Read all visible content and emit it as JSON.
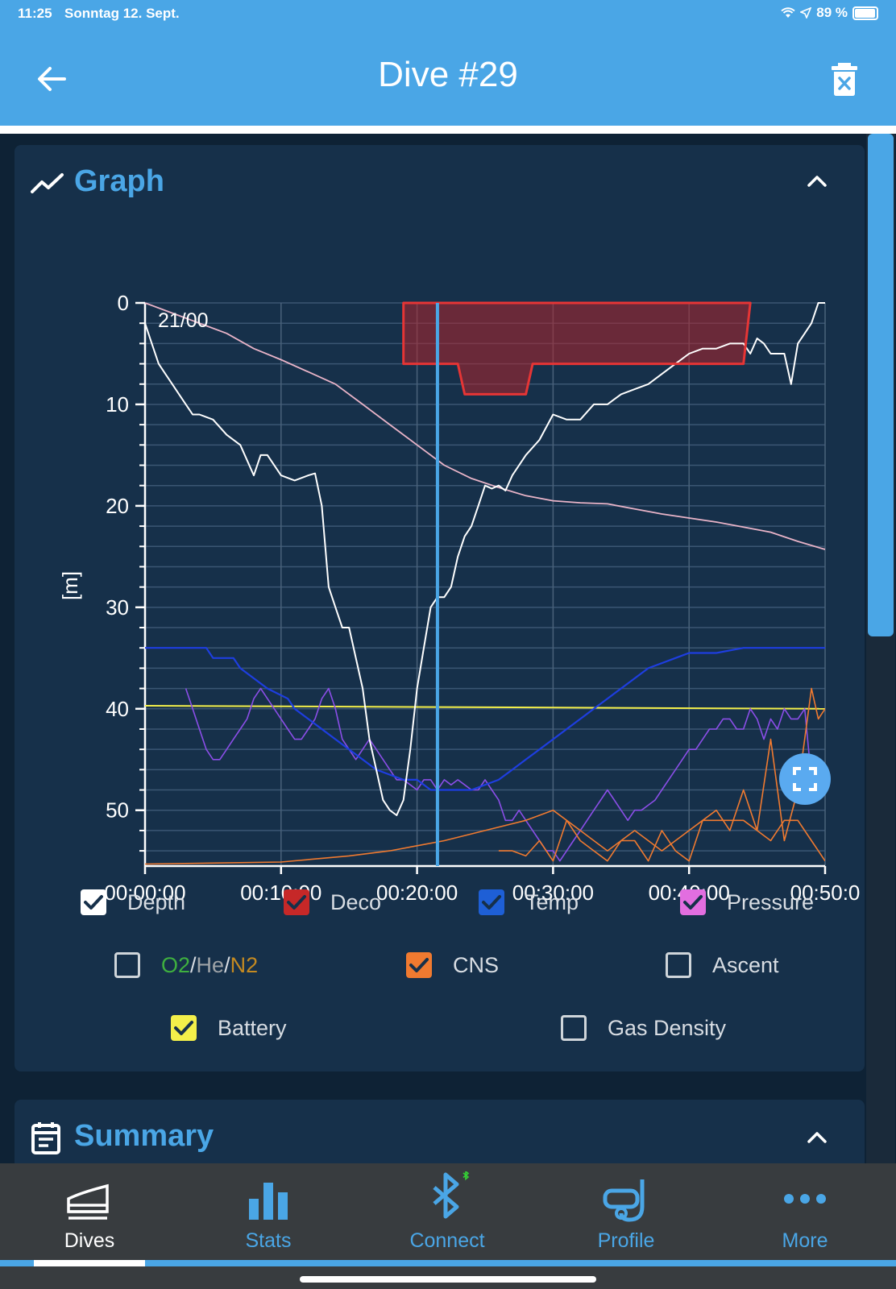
{
  "status_bar": {
    "time": "11:25",
    "date": "Sonntag 12. Sept.",
    "battery": "89 %",
    "battery_level": 0.89
  },
  "header": {
    "title": "Dive #29"
  },
  "graph_card": {
    "title": "Graph"
  },
  "summary_card": {
    "title": "Summary"
  },
  "legend": [
    {
      "label": "Depth",
      "checked": true,
      "color": "#ffffff"
    },
    {
      "label": "Deco",
      "checked": true,
      "color": "#c62828"
    },
    {
      "label": "Temp",
      "checked": true,
      "color": "#1e5fd6"
    },
    {
      "label": "Pressure",
      "checked": true,
      "color": "#e26ee0"
    },
    {
      "label": "O2/He/N2",
      "checked": false,
      "parts": [
        {
          "t": "O2",
          "c": "#3fb03f"
        },
        {
          "t": "/",
          "c": "#d8dde3"
        },
        {
          "t": "He",
          "c": "#9ea3a7"
        },
        {
          "t": "/",
          "c": "#d8dde3"
        },
        {
          "t": "N2",
          "c": "#c48a21"
        }
      ]
    },
    {
      "label": "CNS",
      "checked": true,
      "color": "#f07a30"
    },
    {
      "label": "Ascent",
      "checked": false
    },
    {
      "label": "Battery",
      "checked": true,
      "color": "#f3ef4a"
    },
    {
      "label": "Gas Density",
      "checked": false
    }
  ],
  "tabs": [
    {
      "label": "Dives",
      "icon": "dives-icon",
      "active": true
    },
    {
      "label": "Stats",
      "icon": "stats-icon",
      "active": false
    },
    {
      "label": "Connect",
      "icon": "bluetooth-icon",
      "active": false
    },
    {
      "label": "Profile",
      "icon": "mask-icon",
      "active": false
    },
    {
      "label": "More",
      "icon": "more-icon",
      "active": false
    }
  ],
  "chart_data": {
    "type": "line",
    "ylabel": "[m]",
    "yticks": [
      "0",
      "10",
      "20",
      "30",
      "40",
      "50"
    ],
    "xticks": [
      "00:00:00",
      "00:10:00",
      "00:20:00",
      "00:30:00",
      "00:40:00",
      "00:50:0"
    ],
    "x_unit": "minutes",
    "xlim": [
      0,
      50
    ],
    "ylim": [
      0,
      55.5
    ],
    "annotation": "21/00",
    "cursor_time_min": 21.5,
    "series": [
      {
        "name": "Depth",
        "color": "#ffffff",
        "x": [
          0,
          0.5,
          1,
          1.5,
          2,
          2.5,
          3,
          3.5,
          4,
          5,
          6,
          7,
          8,
          8.5,
          9,
          10,
          11,
          12,
          12.5,
          13,
          13.5,
          14,
          14.5,
          15,
          16,
          16.5,
          17,
          17.5,
          18,
          18.5,
          19,
          19.5,
          20,
          20.5,
          21,
          21.5,
          22,
          22.5,
          23,
          23.5,
          24,
          24.5,
          25,
          25.5,
          26,
          26.5,
          27,
          28,
          29,
          30,
          31,
          32,
          33,
          34,
          35,
          36,
          37,
          38,
          39,
          40,
          41,
          42,
          43,
          44,
          44.5,
          45,
          45.5,
          46,
          47,
          47.5,
          48,
          48.5,
          49,
          49.5,
          50
        ],
        "y": [
          2,
          4,
          6,
          7,
          8,
          9,
          10,
          11,
          11,
          11.5,
          13,
          14,
          17,
          15,
          15,
          17,
          17.5,
          17,
          16.8,
          20,
          28,
          30,
          32,
          32,
          38,
          43,
          46,
          49,
          50,
          50.5,
          49,
          44,
          38,
          34,
          30,
          29,
          29,
          28,
          25,
          23,
          22,
          20,
          18,
          18.3,
          18,
          18.5,
          17,
          15,
          13.5,
          11,
          11.5,
          11.5,
          10,
          10,
          9,
          8.5,
          8,
          7,
          6,
          5,
          4.5,
          4.5,
          4,
          4,
          5,
          3.5,
          4,
          5,
          5,
          8,
          4,
          3,
          2,
          0,
          0
        ]
      },
      {
        "name": "Pressure",
        "color": "#e9b4c8",
        "x": [
          0,
          2,
          4,
          6,
          8,
          10,
          12,
          14,
          16,
          18,
          20,
          22,
          24,
          26,
          28,
          30,
          32,
          34,
          36,
          38,
          40,
          42,
          44,
          46,
          48,
          50
        ],
        "y": [
          0,
          1,
          2,
          3,
          4.5,
          5.6,
          6.8,
          8,
          10,
          12,
          14,
          16,
          17.3,
          18.2,
          19,
          19.5,
          19.7,
          19.8,
          20.3,
          20.8,
          21.2,
          21.6,
          22.1,
          22.6,
          23.5,
          24.3
        ]
      },
      {
        "name": "Deco",
        "color": "#e53535",
        "x": [
          19,
          22,
          23,
          23.5,
          28,
          28.5,
          44,
          44.5
        ],
        "y": [
          6,
          6,
          6,
          9,
          9,
          6,
          6,
          0
        ]
      },
      {
        "name": "Temp",
        "color": "#1e3ee0",
        "x": [
          0,
          3,
          4.5,
          5,
          6.5,
          7,
          8,
          9,
          10.5,
          11,
          12,
          13,
          14,
          15,
          16,
          17,
          19,
          20,
          21,
          23,
          24,
          26,
          27,
          28,
          29,
          30,
          31,
          32,
          33,
          34,
          35,
          36,
          37,
          38,
          39,
          40,
          42,
          44,
          46,
          50
        ],
        "y": [
          34,
          34,
          34,
          35,
          35,
          36,
          37,
          38,
          39,
          40,
          41,
          42,
          43,
          44,
          45,
          46,
          47,
          47,
          48,
          48,
          48,
          47,
          46,
          45,
          44,
          43,
          42,
          41,
          40,
          39,
          38,
          37,
          36,
          35.5,
          35,
          34.5,
          34.5,
          34,
          34,
          34
        ]
      },
      {
        "name": "Battery",
        "color": "#f3ef4a",
        "x": [
          0,
          50
        ],
        "y": [
          39.7,
          40
        ]
      },
      {
        "name": "Pressure Sensor",
        "color": "#8b4ee8",
        "x": [
          3,
          3.5,
          4,
          4.5,
          5,
          5.5,
          6,
          6.5,
          7,
          7.5,
          8,
          8.5,
          9,
          9.5,
          10,
          10.5,
          11,
          11.5,
          12,
          12.5,
          13,
          13.5,
          14,
          14.5,
          15,
          15.5,
          16,
          16.5,
          17,
          17.5,
          18,
          18.5,
          19,
          19.5,
          20,
          20.5,
          21,
          21.5,
          22,
          22.5,
          23,
          23.5,
          24,
          24.5,
          25,
          25.5,
          26,
          26.5,
          27,
          27.5,
          28,
          28.5,
          29,
          29.5,
          30,
          30.5,
          31,
          31.5,
          32,
          32.5,
          33,
          33.5,
          34,
          34.5,
          35,
          35.5,
          36,
          36.5,
          37,
          37.5,
          38,
          38.5,
          39,
          39.5,
          40,
          40.5,
          41,
          41.5,
          42,
          42.5,
          43,
          43.5,
          44,
          44.5,
          45,
          45.5,
          46,
          46.5,
          47,
          47.5,
          48,
          48.5,
          49,
          49.5,
          50
        ],
        "y": [
          38,
          40,
          42,
          44,
          45,
          45,
          44,
          43,
          42,
          41,
          39,
          38,
          39,
          40,
          41,
          42,
          43,
          43,
          42,
          41,
          39,
          38,
          40,
          43,
          44,
          45,
          44,
          43,
          44,
          45,
          46,
          47,
          47,
          47.5,
          48,
          47,
          47,
          48,
          47,
          47.5,
          47,
          47.5,
          48,
          48,
          47,
          48,
          49,
          51,
          51,
          50,
          51,
          52,
          53,
          54,
          54,
          55,
          54,
          53,
          52,
          51,
          50,
          49,
          48,
          49,
          50,
          51,
          50,
          50,
          49.5,
          49,
          48,
          47,
          46,
          45,
          44,
          44,
          43,
          42,
          42,
          41,
          41,
          42,
          42,
          40,
          41,
          43,
          41,
          42,
          40,
          41,
          41,
          40,
          47,
          48,
          48
        ]
      },
      {
        "name": "CNS",
        "color": "#f07a30",
        "x": [
          0,
          10,
          15,
          18,
          20,
          22,
          25,
          28,
          30,
          31,
          32,
          33,
          34,
          35,
          36,
          37,
          38,
          39,
          40,
          41,
          42,
          43,
          44,
          45,
          46,
          46.5,
          47,
          48,
          49,
          49.5,
          50
        ],
        "y": [
          55.3,
          55.1,
          54.5,
          54,
          53.5,
          53,
          52,
          51,
          50,
          51,
          52,
          53,
          54,
          53,
          52,
          53,
          54,
          53,
          52,
          51,
          51,
          51,
          51,
          52,
          53,
          52,
          51,
          51,
          53,
          54,
          55
        ]
      },
      {
        "name": "CNS Transient",
        "color": "#f07a30",
        "x": [
          26,
          27,
          28,
          29,
          30,
          31,
          32,
          33,
          34,
          35,
          36,
          37,
          38,
          39,
          40,
          41,
          42,
          43,
          44,
          45,
          46,
          47,
          48,
          49,
          49.5,
          50
        ],
        "y": [
          54,
          54,
          54.5,
          53,
          55,
          51,
          53,
          54,
          55,
          53,
          53,
          55,
          52,
          54,
          55,
          51,
          50,
          52,
          48,
          52,
          43,
          53,
          48,
          38,
          41,
          40
        ]
      }
    ]
  }
}
